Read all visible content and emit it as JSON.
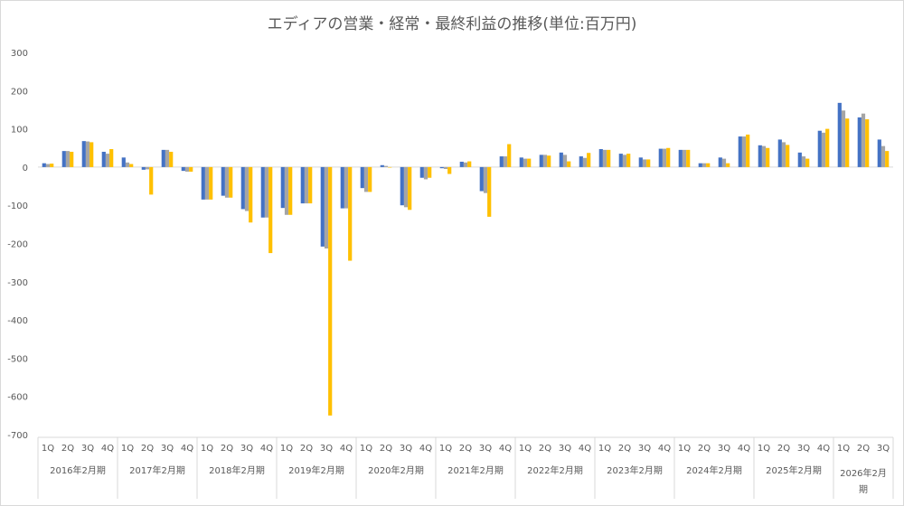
{
  "chart_data": {
    "type": "bar",
    "title": "エディアの営業・経常・最終利益の推移(単位:百万円)",
    "xlabel": "",
    "ylabel": "",
    "ylim": [
      -700,
      300
    ],
    "yticks": [
      300,
      200,
      100,
      0,
      -100,
      -200,
      -300,
      -400,
      -500,
      -600,
      -700
    ],
    "grid": false,
    "legend": "none",
    "colors": [
      "#4472C4",
      "#A5A5A5",
      "#FFC000"
    ],
    "groups": [
      {
        "label": "2016年2月期",
        "quarters": [
          "1Q",
          "2Q",
          "3Q",
          "4Q"
        ]
      },
      {
        "label": "2017年2月期",
        "quarters": [
          "1Q",
          "2Q",
          "3Q",
          "4Q"
        ]
      },
      {
        "label": "2018年2月期",
        "quarters": [
          "1Q",
          "2Q",
          "3Q",
          "4Q"
        ]
      },
      {
        "label": "2019年2月期",
        "quarters": [
          "1Q",
          "2Q",
          "3Q",
          "4Q"
        ]
      },
      {
        "label": "2020年2月期",
        "quarters": [
          "1Q",
          "2Q",
          "3Q",
          "4Q"
        ]
      },
      {
        "label": "2021年2月期",
        "quarters": [
          "1Q",
          "2Q",
          "3Q",
          "4Q"
        ]
      },
      {
        "label": "2022年2月期",
        "quarters": [
          "1Q",
          "2Q",
          "3Q",
          "4Q"
        ]
      },
      {
        "label": "2023年2月期",
        "quarters": [
          "1Q",
          "2Q",
          "3Q",
          "4Q"
        ]
      },
      {
        "label": "2024年2月期",
        "quarters": [
          "1Q",
          "2Q",
          "3Q",
          "4Q"
        ]
      },
      {
        "label": "2025年2月期",
        "quarters": [
          "1Q",
          "2Q",
          "3Q",
          "4Q"
        ]
      },
      {
        "label": "2026年2月期",
        "quarters": [
          "1Q",
          "2Q",
          "3Q"
        ]
      }
    ],
    "series": [
      {
        "values": [
          10,
          42,
          68,
          40,
          25,
          -7,
          45,
          -10,
          -85,
          -75,
          -110,
          -132,
          -107,
          -95,
          -208,
          -108,
          -55,
          5,
          -100,
          -28,
          -3,
          14,
          -63,
          28,
          25,
          32,
          38,
          28,
          47,
          35,
          25,
          48,
          45,
          10,
          25,
          80,
          57,
          72,
          38,
          95,
          168,
          130,
          72
        ]
      },
      {
        "values": [
          8,
          42,
          67,
          35,
          12,
          -6,
          45,
          -12,
          -85,
          -80,
          -115,
          -132,
          -125,
          -95,
          -213,
          -108,
          -65,
          3,
          -105,
          -32,
          -5,
          12,
          -68,
          28,
          22,
          32,
          32,
          24,
          45,
          32,
          20,
          48,
          45,
          10,
          22,
          80,
          55,
          65,
          28,
          90,
          148,
          140,
          55
        ]
      },
      {
        "values": [
          9,
          40,
          65,
          47,
          8,
          -72,
          40,
          -12,
          -85,
          -80,
          -145,
          -225,
          -125,
          -95,
          -650,
          -245,
          -65,
          0,
          -112,
          -28,
          -18,
          15,
          -130,
          60,
          22,
          30,
          15,
          37,
          45,
          35,
          20,
          50,
          45,
          10,
          10,
          85,
          50,
          58,
          22,
          100,
          127,
          125,
          42
        ]
      }
    ]
  }
}
